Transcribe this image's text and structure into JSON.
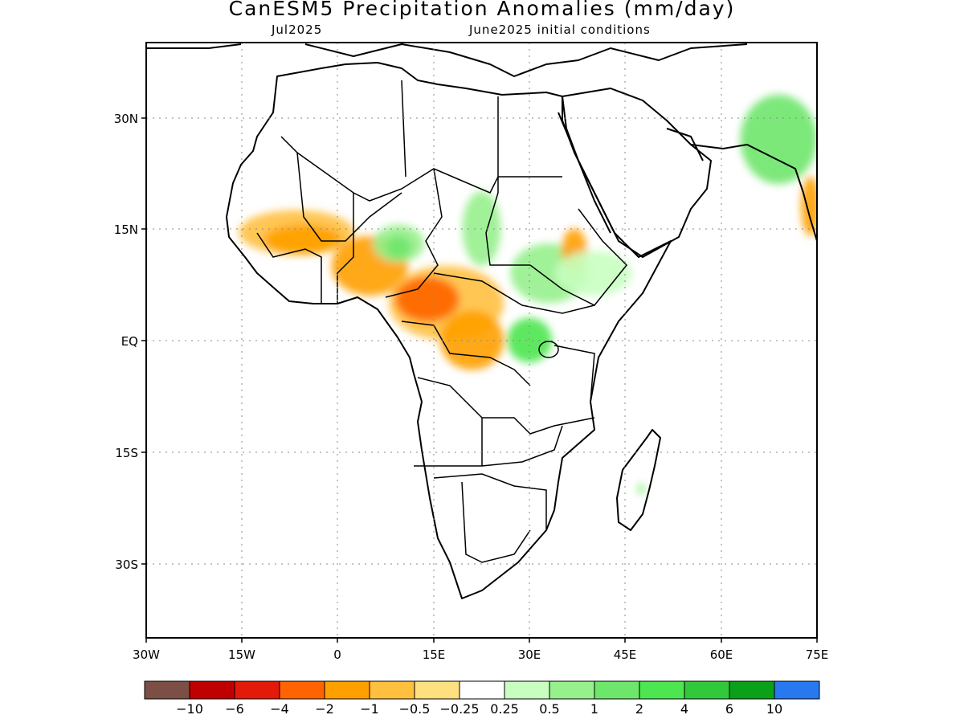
{
  "title": "CanESM5 Precipitation Anomalies (mm/day)",
  "subtitle_left": "Jul2025",
  "subtitle_right": "June2025 initial conditions",
  "lat_labels": [
    "30N",
    "15N",
    "EQ",
    "15S",
    "30S"
  ],
  "lon_labels": [
    "30W",
    "15W",
    "0",
    "15E",
    "30E",
    "45E",
    "60E",
    "75E"
  ],
  "map_extent": {
    "lon": [
      -30,
      75
    ],
    "lat": [
      -40,
      40
    ]
  },
  "colorbar": {
    "colors": [
      "#7b4f45",
      "#c00000",
      "#e31a0a",
      "#ff6400",
      "#ffa000",
      "#ffc040",
      "#ffe080",
      "#ffffff",
      "#c8ffc0",
      "#96f08c",
      "#6ee66c",
      "#4ee650",
      "#32c83c",
      "#0aa01a",
      "#2878f0"
    ],
    "labels": [
      "−10",
      "−6",
      "−4",
      "−2",
      "−1",
      "−0.5",
      "−0.25",
      "0.25",
      "0.5",
      "1",
      "2",
      "4",
      "6",
      "10"
    ]
  },
  "anomaly_regions": [
    {
      "name": "west-sahel-dry",
      "lon": -6.5,
      "lat": 14.5,
      "rlon": 9,
      "rlat": 3,
      "color": "#ffc040"
    },
    {
      "name": "west-sahel-core",
      "lon": -5.5,
      "lat": 13.5,
      "rlon": 6,
      "rlat": 2,
      "color": "#ffa000"
    },
    {
      "name": "gulf-guinea-dry",
      "lon": 5,
      "lat": 10,
      "rlon": 6,
      "rlat": 4,
      "color": "#ffa000"
    },
    {
      "name": "nigeria-chad-wet",
      "lon": 9.5,
      "lat": 13,
      "rlon": 4,
      "rlat": 2.5,
      "color": "#96f08c"
    },
    {
      "name": "nigeria-chad-wet-core",
      "lon": 9.5,
      "lat": 12.5,
      "rlon": 2,
      "rlat": 1.5,
      "color": "#6ee66c"
    },
    {
      "name": "central-africa-dry",
      "lon": 17,
      "lat": 5,
      "rlon": 9,
      "rlat": 5,
      "color": "#ffc040"
    },
    {
      "name": "cameroon-dry-core",
      "lon": 14,
      "lat": 5.5,
      "rlon": 5,
      "rlat": 3,
      "color": "#ff6400"
    },
    {
      "name": "sudan-wet",
      "lon": 22.5,
      "lat": 15,
      "rlon": 3,
      "rlat": 5,
      "color": "#96f08c"
    },
    {
      "name": "south-sudan-wet",
      "lon": 33,
      "lat": 9,
      "rlon": 6,
      "rlat": 4,
      "color": "#96f08c"
    },
    {
      "name": "ethiopia-dry",
      "lon": 37,
      "lat": 12,
      "rlon": 2,
      "rlat": 3,
      "color": "#ffa000"
    },
    {
      "name": "ethiopia-wet",
      "lon": 40,
      "lat": 9,
      "rlon": 6,
      "rlat": 3,
      "color": "#c8ffc0"
    },
    {
      "name": "great-lakes-wet",
      "lon": 30,
      "lat": 0,
      "rlon": 3.5,
      "rlat": 3,
      "color": "#4ee650"
    },
    {
      "name": "congo-dry",
      "lon": 21,
      "lat": 0,
      "rlon": 5,
      "rlat": 4,
      "color": "#ffa000"
    },
    {
      "name": "india-wet",
      "lon": 69,
      "lat": 27,
      "rlon": 6,
      "rlat": 6,
      "color": "#6ee66c"
    },
    {
      "name": "india-west-dry",
      "lon": 74,
      "lat": 18,
      "rlon": 1.5,
      "rlat": 4,
      "color": "#ffa000"
    },
    {
      "name": "madagascar-wet",
      "lon": 47.5,
      "lat": -20,
      "rlon": 0.6,
      "rlat": 0.8,
      "color": "#96f08c"
    }
  ]
}
